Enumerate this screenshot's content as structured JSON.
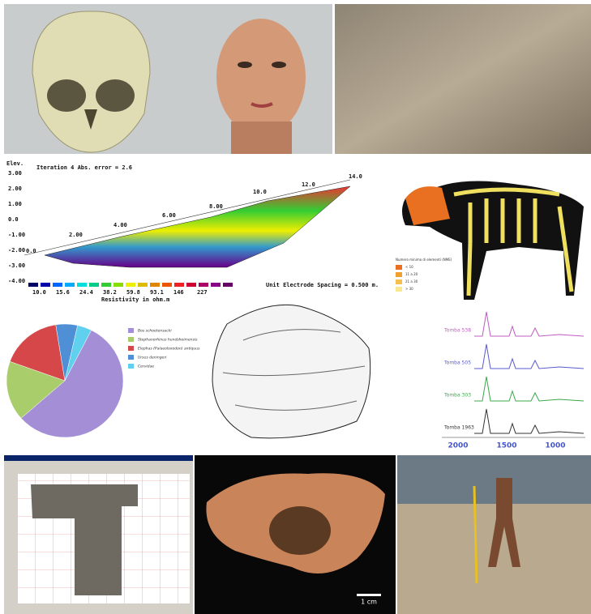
{
  "resistivity": {
    "elev_label": "Elev.",
    "title": "Iteration 4 Abs. error = 2.6",
    "elevations": [
      "3.00",
      "2.00",
      "1.00",
      "0.0",
      "-1.00",
      "-2.00",
      "-3.00",
      "-4.00"
    ],
    "distances": [
      "0.0",
      "2.00",
      "4.00",
      "6.00",
      "8.00",
      "10.0",
      "12.0",
      "14.0"
    ],
    "scale": [
      "10.0",
      "15.6",
      "24.4",
      "38.2",
      "59.8",
      "93.1",
      "146",
      "227"
    ],
    "scale_title": "Resistivity in ohm.m",
    "spacing": "Unit Electrode Spacing = 0.500 m."
  },
  "bison": {
    "legend_title": "Numero minimo di elementi (NME)",
    "legend": [
      "< 10",
      "11 a 20",
      "21 a 30",
      "> 30"
    ]
  },
  "pie": {
    "values": [
      56,
      17,
      17,
      6,
      4
    ],
    "legend": [
      "Bos schoetensacki",
      "Stephanorhinus hundsheimensis",
      "Elephas (Palaeoloxodon) antiquus",
      "Ursus deningeri",
      "Cervidae"
    ],
    "colors": [
      "#a48fd6",
      "#a9cd6a",
      "#d6474a",
      "#4f8fd6",
      "#5fd0ee"
    ]
  },
  "spectra": {
    "labels": [
      "Tomba 538",
      "Tomba 505",
      "Tomba 303",
      "Tomba 1963"
    ],
    "colors": [
      "#c05cc0",
      "#5a5ad0",
      "#3aa84a",
      "#333333"
    ],
    "x_labels": [
      "2000",
      "1500",
      "1000"
    ]
  },
  "photo": {
    "scale": "1 cm"
  }
}
